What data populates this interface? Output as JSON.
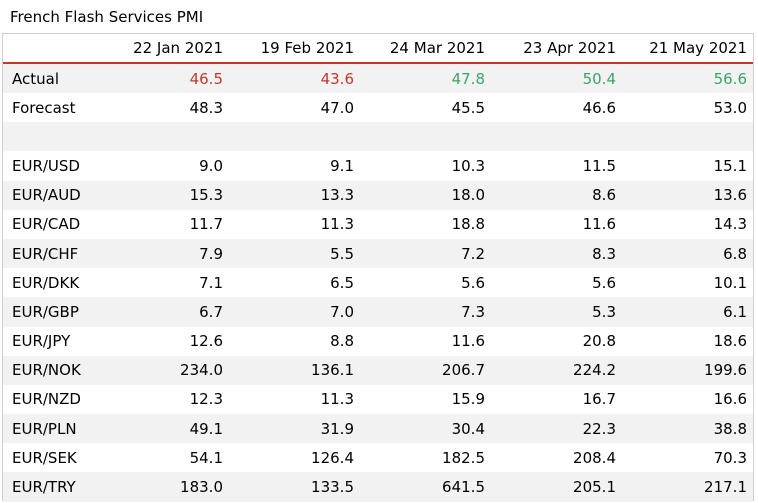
{
  "title": "French Flash Services PMI",
  "chart_data": {
    "type": "table",
    "title": "French Flash Services PMI",
    "columns": [
      "22 Jan 2021",
      "19 Feb 2021",
      "24 Mar 2021",
      "23 Apr 2021",
      "21 May 2021"
    ],
    "colors": {
      "below": "#c0392b",
      "above": "#3aa569"
    },
    "rows": [
      {
        "label": "Actual",
        "values": [
          "46.5",
          "43.6",
          "47.8",
          "50.4",
          "56.6"
        ],
        "tones": [
          "neg",
          "neg",
          "pos",
          "pos",
          "pos"
        ]
      },
      {
        "label": "Forecast",
        "values": [
          "48.3",
          "47.0",
          "45.5",
          "46.6",
          "53.0"
        ]
      },
      {
        "label": "",
        "values": [
          "",
          "",
          "",
          "",
          ""
        ],
        "spacer": true
      },
      {
        "label": "EUR/USD",
        "values": [
          "9.0",
          "9.1",
          "10.3",
          "11.5",
          "15.1"
        ]
      },
      {
        "label": "EUR/AUD",
        "values": [
          "15.3",
          "13.3",
          "18.0",
          "8.6",
          "13.6"
        ]
      },
      {
        "label": "EUR/CAD",
        "values": [
          "11.7",
          "11.3",
          "18.8",
          "11.6",
          "14.3"
        ]
      },
      {
        "label": "EUR/CHF",
        "values": [
          "7.9",
          "5.5",
          "7.2",
          "8.3",
          "6.8"
        ]
      },
      {
        "label": "EUR/DKK",
        "values": [
          "7.1",
          "6.5",
          "5.6",
          "5.6",
          "10.1"
        ]
      },
      {
        "label": "EUR/GBP",
        "values": [
          "6.7",
          "7.0",
          "7.3",
          "5.3",
          "6.1"
        ]
      },
      {
        "label": "EUR/JPY",
        "values": [
          "12.6",
          "8.8",
          "11.6",
          "20.8",
          "18.6"
        ]
      },
      {
        "label": "EUR/NOK",
        "values": [
          "234.0",
          "136.1",
          "206.7",
          "224.2",
          "199.6"
        ]
      },
      {
        "label": "EUR/NZD",
        "values": [
          "12.3",
          "11.3",
          "15.9",
          "16.7",
          "16.6"
        ]
      },
      {
        "label": "EUR/PLN",
        "values": [
          "49.1",
          "31.9",
          "30.4",
          "22.3",
          "38.8"
        ]
      },
      {
        "label": "EUR/SEK",
        "values": [
          "54.1",
          "126.4",
          "182.5",
          "208.4",
          "70.3"
        ]
      },
      {
        "label": "EUR/TRY",
        "values": [
          "183.0",
          "133.5",
          "641.5",
          "205.1",
          "217.1"
        ]
      }
    ]
  }
}
